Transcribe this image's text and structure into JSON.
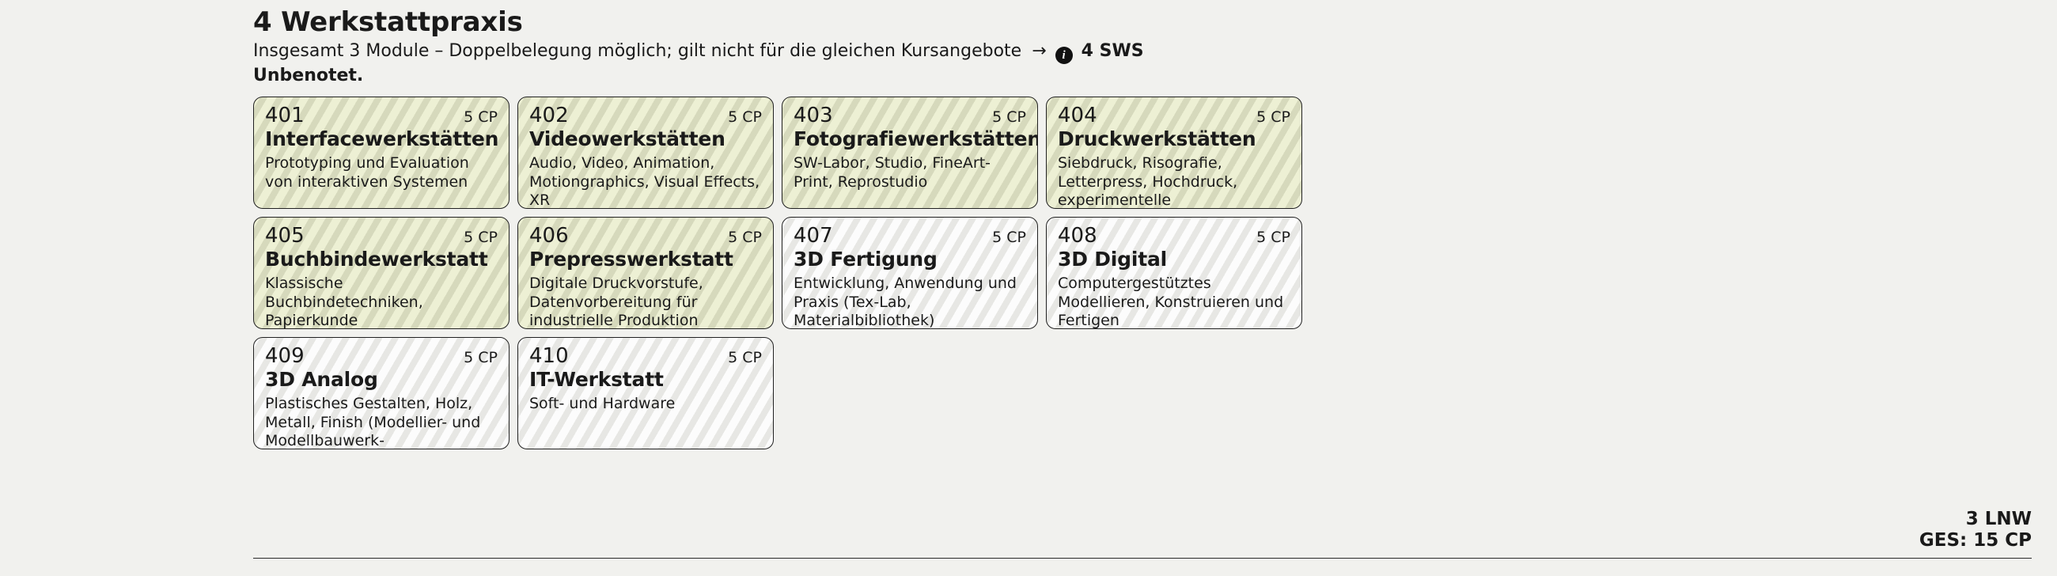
{
  "header": {
    "title": "4 Werkstattpraxis",
    "subtitle_a": "Insgesamt 3 Module – Doppelbelegung möglich; gilt nicht für die gleichen Kursangebote",
    "arrow": "→",
    "info_glyph": "i",
    "sws": "4 SWS",
    "unbenotet": "Unbenotet."
  },
  "cards": [
    {
      "code": "401",
      "cp": "5 CP",
      "title": "Interfacewerkstätten",
      "desc": "Prototyping und Evaluation von interaktiven Systemen",
      "tone": "green"
    },
    {
      "code": "402",
      "cp": "5 CP",
      "title": "Videowerkstätten",
      "desc": "Audio, Video, Animation, Motion­graphics, Visual Effects, XR",
      "tone": "green"
    },
    {
      "code": "403",
      "cp": "5 CP",
      "title": "Fotografiewerkstätten",
      "desc": "SW-Labor, Studio, FineArt-Print, Reprostudio",
      "tone": "green"
    },
    {
      "code": "404",
      "cp": "5 CP",
      "title": "Druckwerkstätten",
      "desc": "Siebdruck, Risografie, Letterpress, Hoch­druck, experimentelle Drucktechniken",
      "tone": "green"
    },
    {
      "code": "405",
      "cp": "5 CP",
      "title": "Buchbindewerkstatt",
      "desc": "Klassische Buchbindetechniken, Papierkunde",
      "tone": "green"
    },
    {
      "code": "406",
      "cp": "5 CP",
      "title": "Prepresswerkstatt",
      "desc": "Digitale Druckvorstufe, Datenvorbe­reitung für industrielle Produktion",
      "tone": "green"
    },
    {
      "code": "407",
      "cp": "5 CP",
      "title": "3D Fertigung",
      "desc": "Entwicklung, Anwendung und Praxis (Tex-Lab, Materialbibliothek)",
      "tone": "grey"
    },
    {
      "code": "408",
      "cp": "5 CP",
      "title": "3D Digital",
      "desc": "Computergestütztes Modellieren, Konstruieren und Fertigen",
      "tone": "grey"
    },
    {
      "code": "409",
      "cp": "5 CP",
      "title": "3D Analog",
      "desc": "Plastisches Gestalten, Holz, Metall, Finish (Modellier- und Modellbauwerk-",
      "tone": "grey"
    },
    {
      "code": "410",
      "cp": "5 CP",
      "title": "IT-Werkstatt",
      "desc": "Soft- und Hardware",
      "tone": "grey"
    }
  ],
  "footer": {
    "lnw": "3 LNW",
    "ges": "GES: 15 CP"
  }
}
